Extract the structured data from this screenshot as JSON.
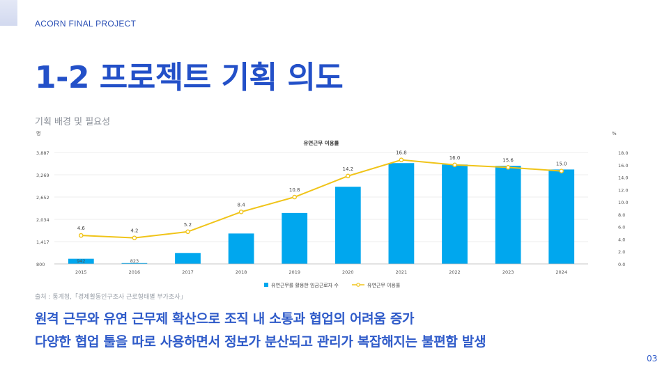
{
  "header": {
    "project": "ACORN FINAL PROJECT"
  },
  "title": "1-2 프로젝트 기획 의도",
  "subtitle": "기획 배경 및 필요성",
  "source_note": "출처 : 통계청,「경제활동인구조사 근로형태별 부가조사」",
  "bullets": [
    "원격 근무와 유연 근무제 확산으로 조직 내 소통과 협업의 어려움 증가",
    "다양한 협업 툴을 따로 사용하면서 정보가 분산되고 관리가 복잡해지는 불편함 발생"
  ],
  "page_number": "03",
  "colors": {
    "title": "#2350c8",
    "bar": "#00a7ee",
    "line": "#f0c419",
    "accent": "#2f5bc9"
  },
  "chart_data": {
    "type": "bar",
    "title": "유연근무 이용률",
    "y_left_unit": "명",
    "y_right_unit": "%",
    "categories": [
      "2015",
      "2016",
      "2017",
      "2018",
      "2019",
      "2020",
      "2021",
      "2022",
      "2023",
      "2024"
    ],
    "y_left_ticks": [
      "3,887",
      "3,269",
      "2,652",
      "2,034",
      "1,417",
      "800"
    ],
    "y_left_range": [
      800,
      3887
    ],
    "y_right_ticks": [
      "18.0",
      "16.0",
      "14.0",
      "12.0",
      "10.0",
      "8.0",
      "6.0",
      "4.0",
      "2.0",
      "0.0"
    ],
    "y_right_range": [
      0,
      18
    ],
    "series": [
      {
        "name": "유연근무를 활용한 임금근로자 수",
        "kind": "bar",
        "axis": "left",
        "values": [
          942,
          823,
          1103,
          1642,
          2211,
          2938,
          3593,
          3553,
          3518,
          3416
        ],
        "labels": [
          "942",
          "823",
          "",
          "",
          "",
          "",
          "",
          "",
          "",
          ""
        ]
      },
      {
        "name": "유연근무 이용률",
        "kind": "line",
        "axis": "right",
        "values": [
          4.6,
          4.2,
          5.2,
          8.4,
          10.8,
          14.2,
          16.8,
          16.0,
          15.6,
          15.0
        ],
        "labels": [
          "4.6",
          "4.2",
          "5.2",
          "8.4",
          "10.8",
          "14.2",
          "16.8",
          "16.0",
          "15.6",
          "15.0"
        ]
      }
    ],
    "legend_position": "bottom"
  }
}
